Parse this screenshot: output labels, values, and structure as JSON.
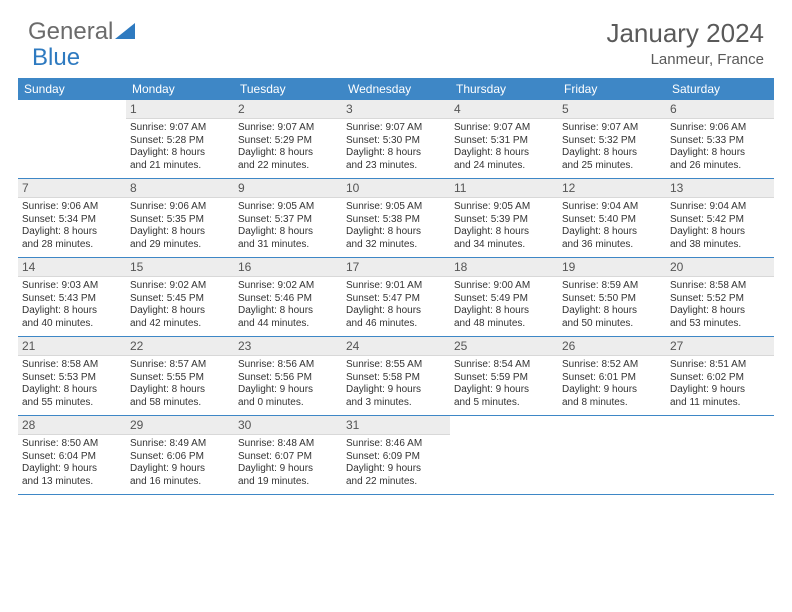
{
  "logo": {
    "part1": "General",
    "part2": "Blue"
  },
  "title": {
    "month": "January 2024",
    "location": "Lanmeur, France"
  },
  "colors": {
    "header_bg": "#3e87c6",
    "header_text": "#ffffff",
    "daynum_bg": "#ededed",
    "border": "#3e87c6",
    "text": "#333333",
    "logo_gray": "#6b6b6b",
    "logo_blue": "#2e7ac0"
  },
  "day_names": [
    "Sunday",
    "Monday",
    "Tuesday",
    "Wednesday",
    "Thursday",
    "Friday",
    "Saturday"
  ],
  "weeks": [
    [
      {
        "blank": true
      },
      {
        "n": "1",
        "sr": "Sunrise: 9:07 AM",
        "ss": "Sunset: 5:28 PM",
        "d1": "Daylight: 8 hours",
        "d2": "and 21 minutes."
      },
      {
        "n": "2",
        "sr": "Sunrise: 9:07 AM",
        "ss": "Sunset: 5:29 PM",
        "d1": "Daylight: 8 hours",
        "d2": "and 22 minutes."
      },
      {
        "n": "3",
        "sr": "Sunrise: 9:07 AM",
        "ss": "Sunset: 5:30 PM",
        "d1": "Daylight: 8 hours",
        "d2": "and 23 minutes."
      },
      {
        "n": "4",
        "sr": "Sunrise: 9:07 AM",
        "ss": "Sunset: 5:31 PM",
        "d1": "Daylight: 8 hours",
        "d2": "and 24 minutes."
      },
      {
        "n": "5",
        "sr": "Sunrise: 9:07 AM",
        "ss": "Sunset: 5:32 PM",
        "d1": "Daylight: 8 hours",
        "d2": "and 25 minutes."
      },
      {
        "n": "6",
        "sr": "Sunrise: 9:06 AM",
        "ss": "Sunset: 5:33 PM",
        "d1": "Daylight: 8 hours",
        "d2": "and 26 minutes."
      }
    ],
    [
      {
        "n": "7",
        "sr": "Sunrise: 9:06 AM",
        "ss": "Sunset: 5:34 PM",
        "d1": "Daylight: 8 hours",
        "d2": "and 28 minutes."
      },
      {
        "n": "8",
        "sr": "Sunrise: 9:06 AM",
        "ss": "Sunset: 5:35 PM",
        "d1": "Daylight: 8 hours",
        "d2": "and 29 minutes."
      },
      {
        "n": "9",
        "sr": "Sunrise: 9:05 AM",
        "ss": "Sunset: 5:37 PM",
        "d1": "Daylight: 8 hours",
        "d2": "and 31 minutes."
      },
      {
        "n": "10",
        "sr": "Sunrise: 9:05 AM",
        "ss": "Sunset: 5:38 PM",
        "d1": "Daylight: 8 hours",
        "d2": "and 32 minutes."
      },
      {
        "n": "11",
        "sr": "Sunrise: 9:05 AM",
        "ss": "Sunset: 5:39 PM",
        "d1": "Daylight: 8 hours",
        "d2": "and 34 minutes."
      },
      {
        "n": "12",
        "sr": "Sunrise: 9:04 AM",
        "ss": "Sunset: 5:40 PM",
        "d1": "Daylight: 8 hours",
        "d2": "and 36 minutes."
      },
      {
        "n": "13",
        "sr": "Sunrise: 9:04 AM",
        "ss": "Sunset: 5:42 PM",
        "d1": "Daylight: 8 hours",
        "d2": "and 38 minutes."
      }
    ],
    [
      {
        "n": "14",
        "sr": "Sunrise: 9:03 AM",
        "ss": "Sunset: 5:43 PM",
        "d1": "Daylight: 8 hours",
        "d2": "and 40 minutes."
      },
      {
        "n": "15",
        "sr": "Sunrise: 9:02 AM",
        "ss": "Sunset: 5:45 PM",
        "d1": "Daylight: 8 hours",
        "d2": "and 42 minutes."
      },
      {
        "n": "16",
        "sr": "Sunrise: 9:02 AM",
        "ss": "Sunset: 5:46 PM",
        "d1": "Daylight: 8 hours",
        "d2": "and 44 minutes."
      },
      {
        "n": "17",
        "sr": "Sunrise: 9:01 AM",
        "ss": "Sunset: 5:47 PM",
        "d1": "Daylight: 8 hours",
        "d2": "and 46 minutes."
      },
      {
        "n": "18",
        "sr": "Sunrise: 9:00 AM",
        "ss": "Sunset: 5:49 PM",
        "d1": "Daylight: 8 hours",
        "d2": "and 48 minutes."
      },
      {
        "n": "19",
        "sr": "Sunrise: 8:59 AM",
        "ss": "Sunset: 5:50 PM",
        "d1": "Daylight: 8 hours",
        "d2": "and 50 minutes."
      },
      {
        "n": "20",
        "sr": "Sunrise: 8:58 AM",
        "ss": "Sunset: 5:52 PM",
        "d1": "Daylight: 8 hours",
        "d2": "and 53 minutes."
      }
    ],
    [
      {
        "n": "21",
        "sr": "Sunrise: 8:58 AM",
        "ss": "Sunset: 5:53 PM",
        "d1": "Daylight: 8 hours",
        "d2": "and 55 minutes."
      },
      {
        "n": "22",
        "sr": "Sunrise: 8:57 AM",
        "ss": "Sunset: 5:55 PM",
        "d1": "Daylight: 8 hours",
        "d2": "and 58 minutes."
      },
      {
        "n": "23",
        "sr": "Sunrise: 8:56 AM",
        "ss": "Sunset: 5:56 PM",
        "d1": "Daylight: 9 hours",
        "d2": "and 0 minutes."
      },
      {
        "n": "24",
        "sr": "Sunrise: 8:55 AM",
        "ss": "Sunset: 5:58 PM",
        "d1": "Daylight: 9 hours",
        "d2": "and 3 minutes."
      },
      {
        "n": "25",
        "sr": "Sunrise: 8:54 AM",
        "ss": "Sunset: 5:59 PM",
        "d1": "Daylight: 9 hours",
        "d2": "and 5 minutes."
      },
      {
        "n": "26",
        "sr": "Sunrise: 8:52 AM",
        "ss": "Sunset: 6:01 PM",
        "d1": "Daylight: 9 hours",
        "d2": "and 8 minutes."
      },
      {
        "n": "27",
        "sr": "Sunrise: 8:51 AM",
        "ss": "Sunset: 6:02 PM",
        "d1": "Daylight: 9 hours",
        "d2": "and 11 minutes."
      }
    ],
    [
      {
        "n": "28",
        "sr": "Sunrise: 8:50 AM",
        "ss": "Sunset: 6:04 PM",
        "d1": "Daylight: 9 hours",
        "d2": "and 13 minutes."
      },
      {
        "n": "29",
        "sr": "Sunrise: 8:49 AM",
        "ss": "Sunset: 6:06 PM",
        "d1": "Daylight: 9 hours",
        "d2": "and 16 minutes."
      },
      {
        "n": "30",
        "sr": "Sunrise: 8:48 AM",
        "ss": "Sunset: 6:07 PM",
        "d1": "Daylight: 9 hours",
        "d2": "and 19 minutes."
      },
      {
        "n": "31",
        "sr": "Sunrise: 8:46 AM",
        "ss": "Sunset: 6:09 PM",
        "d1": "Daylight: 9 hours",
        "d2": "and 22 minutes."
      },
      {
        "blank": true
      },
      {
        "blank": true
      },
      {
        "blank": true
      }
    ]
  ]
}
